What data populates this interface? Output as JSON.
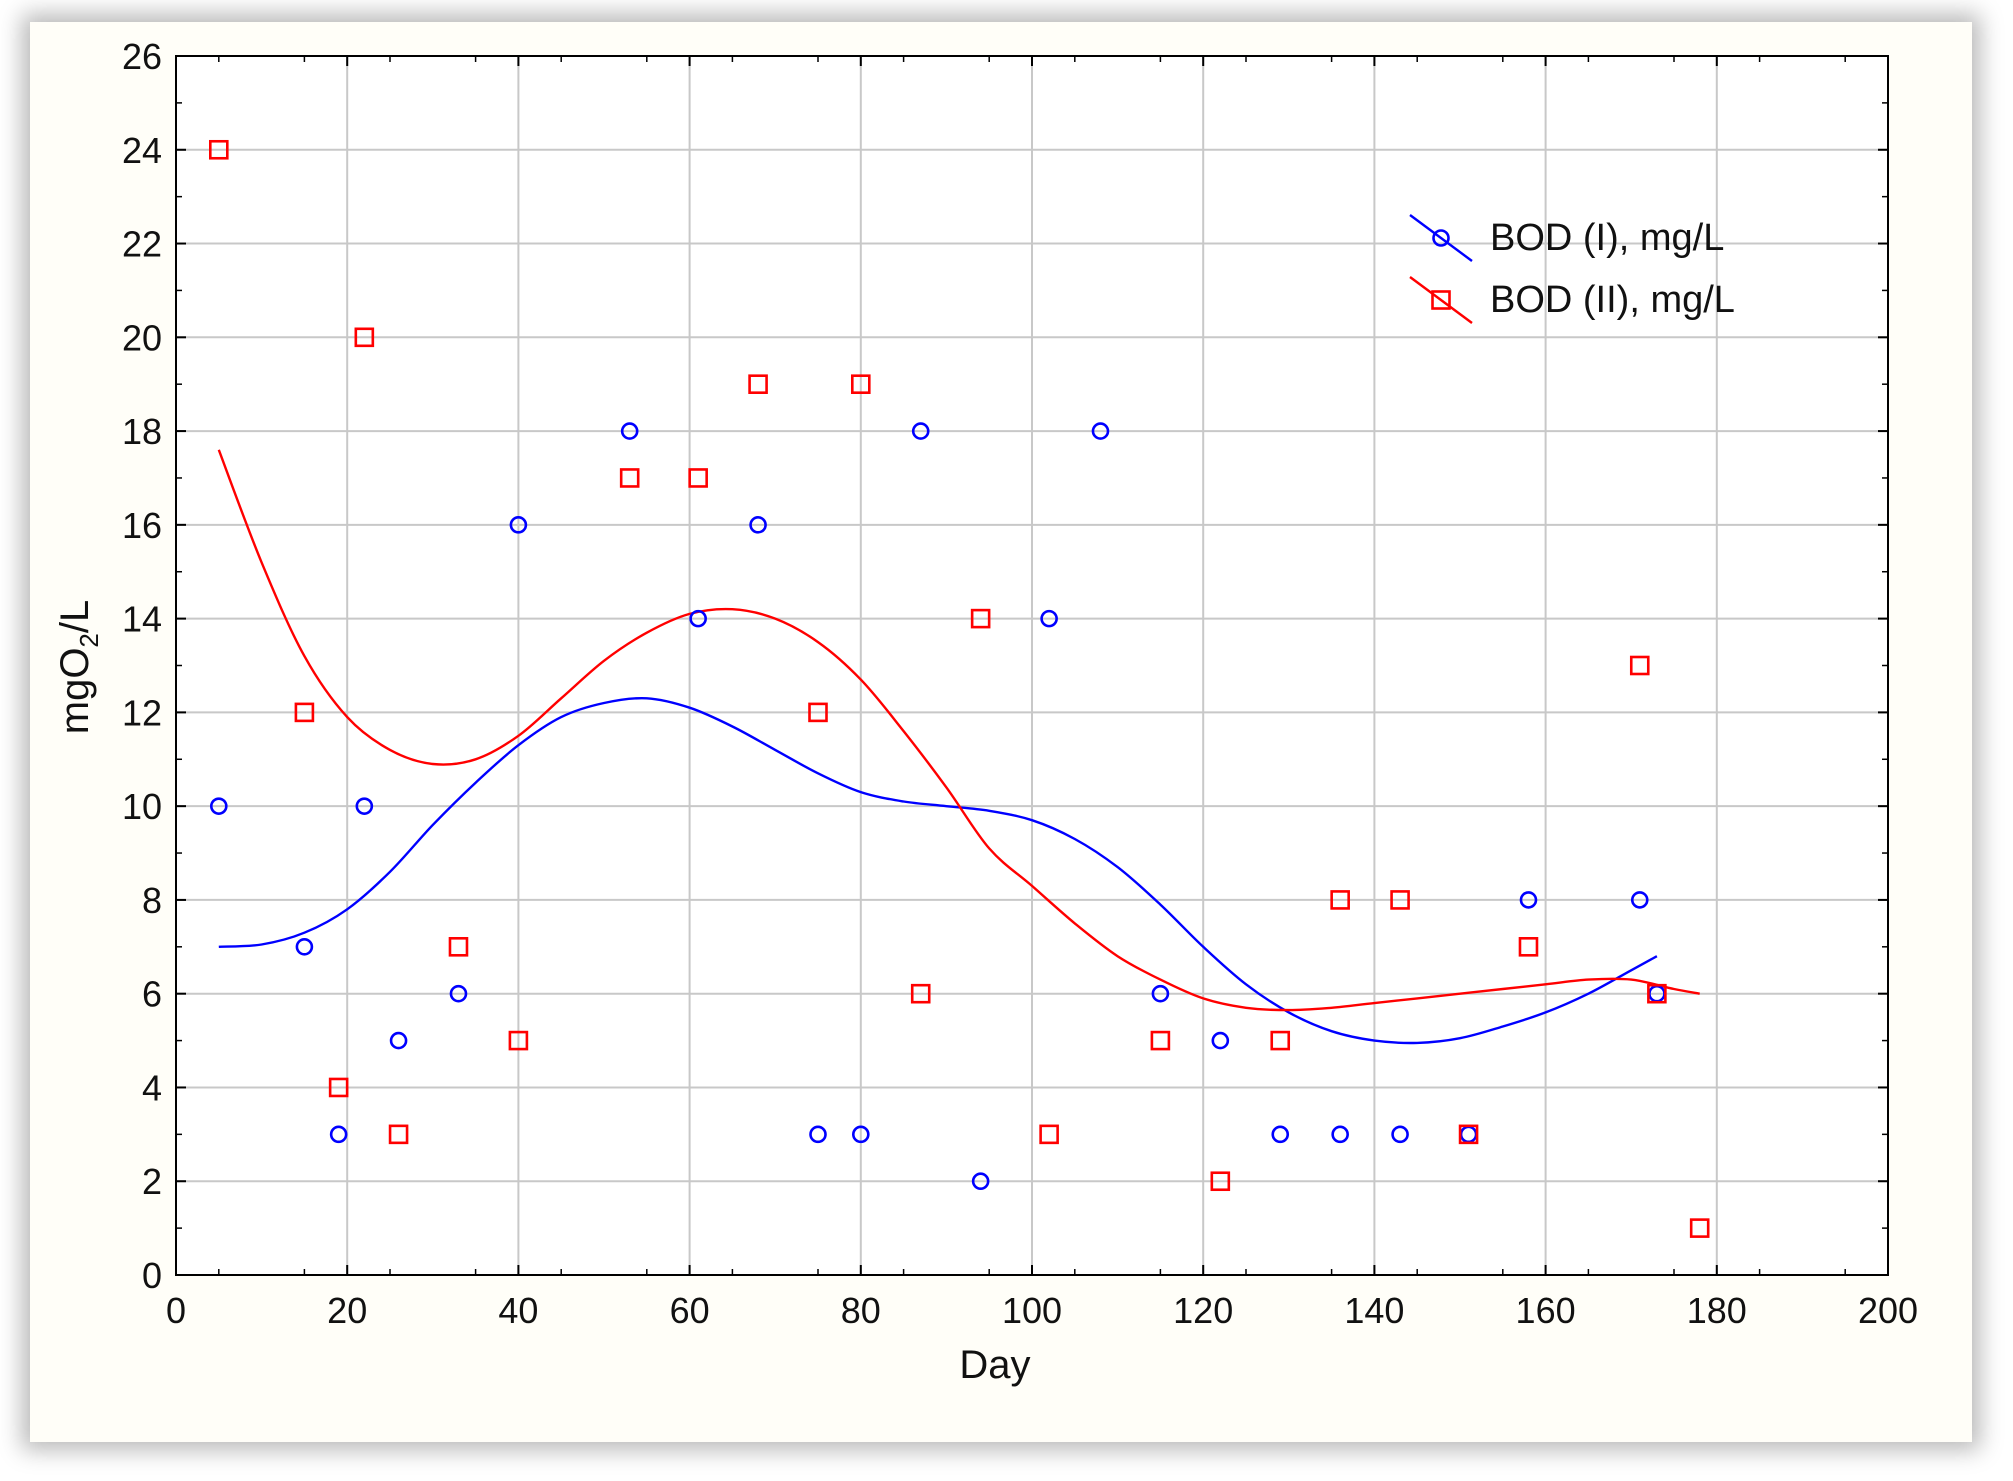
{
  "chart_data": {
    "type": "scatter",
    "title": "",
    "xlabel": "Day",
    "ylabel": "mgO2/L",
    "ylabel_parts": {
      "pre": "mgO",
      "sub": "2",
      "post": "/L"
    },
    "xlim": [
      0,
      200
    ],
    "ylim": [
      0,
      26
    ],
    "xticks": [
      0,
      20,
      40,
      60,
      80,
      100,
      120,
      140,
      160,
      180,
      200
    ],
    "yticks": [
      0,
      2,
      4,
      6,
      8,
      10,
      12,
      14,
      16,
      18,
      20,
      22,
      24,
      26
    ],
    "grid": true,
    "legend_position": "top-right",
    "series": [
      {
        "name": "BOD (I), mg/L",
        "color": "#0000ff",
        "marker": "circle",
        "x": [
          5,
          15,
          19,
          22,
          26,
          33,
          40,
          53,
          61,
          68,
          75,
          80,
          87,
          94,
          102,
          108,
          115,
          122,
          129,
          136,
          143,
          151,
          158,
          171,
          173
        ],
        "y": [
          10,
          7,
          3,
          10,
          5,
          6,
          16,
          18,
          14,
          16,
          3,
          3,
          18,
          2,
          14,
          18,
          6,
          5,
          3,
          3,
          3,
          3,
          8,
          8,
          6
        ],
        "fit_curve": {
          "x": [
            5,
            10,
            15,
            20,
            25,
            30,
            35,
            40,
            45,
            50,
            55,
            60,
            65,
            70,
            75,
            80,
            85,
            90,
            95,
            100,
            105,
            110,
            115,
            120,
            125,
            130,
            135,
            140,
            145,
            150,
            155,
            160,
            165,
            170,
            173
          ],
          "y": [
            7.0,
            7.05,
            7.3,
            7.8,
            8.6,
            9.6,
            10.5,
            11.3,
            11.9,
            12.2,
            12.3,
            12.1,
            11.7,
            11.2,
            10.7,
            10.3,
            10.1,
            10.0,
            9.9,
            9.7,
            9.3,
            8.7,
            7.9,
            7.0,
            6.2,
            5.6,
            5.2,
            5.0,
            4.95,
            5.05,
            5.3,
            5.6,
            6.0,
            6.5,
            6.8
          ]
        }
      },
      {
        "name": "BOD (II), mg/L",
        "color": "#ff0000",
        "marker": "square",
        "x": [
          5,
          15,
          19,
          22,
          26,
          33,
          40,
          53,
          61,
          68,
          75,
          80,
          87,
          94,
          102,
          115,
          122,
          129,
          136,
          143,
          151,
          158,
          171,
          173,
          178
        ],
        "y": [
          24,
          12,
          4,
          20,
          3,
          7,
          5,
          17,
          17,
          19,
          12,
          19,
          6,
          14,
          3,
          5,
          2,
          5,
          8,
          8,
          3,
          7,
          13,
          6,
          1
        ],
        "fit_curve": {
          "x": [
            5,
            10,
            15,
            20,
            25,
            30,
            35,
            40,
            45,
            50,
            55,
            60,
            65,
            70,
            75,
            80,
            85,
            90,
            95,
            100,
            105,
            110,
            115,
            120,
            125,
            130,
            135,
            140,
            145,
            150,
            155,
            160,
            165,
            170,
            175,
            178
          ],
          "y": [
            17.6,
            15.2,
            13.2,
            11.9,
            11.2,
            10.9,
            11.0,
            11.5,
            12.3,
            13.1,
            13.7,
            14.1,
            14.2,
            14.0,
            13.5,
            12.7,
            11.6,
            10.4,
            9.1,
            8.3,
            7.5,
            6.8,
            6.3,
            5.9,
            5.7,
            5.65,
            5.7,
            5.8,
            5.9,
            6.0,
            6.1,
            6.2,
            6.3,
            6.3,
            6.1,
            6.0
          ]
        }
      }
    ]
  }
}
